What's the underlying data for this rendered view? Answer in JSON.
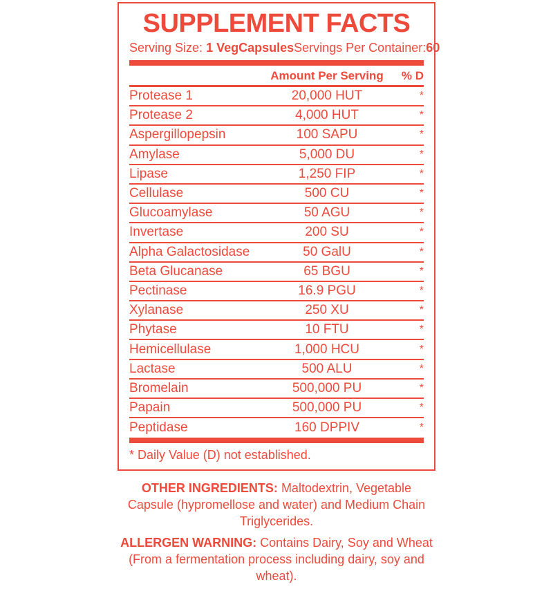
{
  "colors": {
    "accent": "#ee4a3c",
    "background": "#ffffff"
  },
  "panel": {
    "title": "SUPPLEMENT FACTS",
    "serving_size_label": "Serving Size: ",
    "serving_size_value": "1 VegCapsules",
    "servings_per_container_label": "Servings Per Container:",
    "servings_per_container_value": "60",
    "header": {
      "amount": "Amount Per Serving",
      "dv": "% D"
    },
    "rows": [
      {
        "name": "Protease 1",
        "amount": "20,000 HUT",
        "dv": "*"
      },
      {
        "name": "Protease 2",
        "amount": "4,000 HUT",
        "dv": "*"
      },
      {
        "name": "Aspergillopepsin",
        "amount": "100 SAPU",
        "dv": "*"
      },
      {
        "name": "Amylase",
        "amount": "5,000 DU",
        "dv": "*"
      },
      {
        "name": "Lipase",
        "amount": "1,250 FIP",
        "dv": "*"
      },
      {
        "name": "Cellulase",
        "amount": "500 CU",
        "dv": "*"
      },
      {
        "name": "Glucoamylase",
        "amount": "50 AGU",
        "dv": "*"
      },
      {
        "name": "Invertase",
        "amount": "200 SU",
        "dv": "*"
      },
      {
        "name": "Alpha Galactosidase",
        "amount": "50 GalU",
        "dv": "*"
      },
      {
        "name": "Beta Glucanase",
        "amount": "65 BGU",
        "dv": "*"
      },
      {
        "name": "Pectinase",
        "amount": "16.9 PGU",
        "dv": "*"
      },
      {
        "name": "Xylanase",
        "amount": "250 XU",
        "dv": "*"
      },
      {
        "name": "Phytase",
        "amount": "10 FTU",
        "dv": "*"
      },
      {
        "name": "Hemicellulase",
        "amount": "1,000 HCU",
        "dv": "*"
      },
      {
        "name": "Lactase",
        "amount": "500 ALU",
        "dv": "*"
      },
      {
        "name": "Bromelain",
        "amount": "500,000 PU",
        "dv": "*"
      },
      {
        "name": "Papain",
        "amount": "500,000 PU",
        "dv": "*"
      },
      {
        "name": "Peptidase",
        "amount": "160 DPPIV",
        "dv": "*"
      }
    ],
    "footnote": "* Daily Value (D) not established."
  },
  "below": {
    "other_ingredients_label": "OTHER INGREDIENTS:",
    "other_ingredients_text": " Maltodextrin, Vegetable Capsule (hypromellose and water) and Medium Chain Triglycerides.",
    "allergen_label": "ALLERGEN WARNING:",
    "allergen_text": " Contains Dairy, Soy and Wheat (From a fermentation process including dairy, soy and wheat)."
  }
}
